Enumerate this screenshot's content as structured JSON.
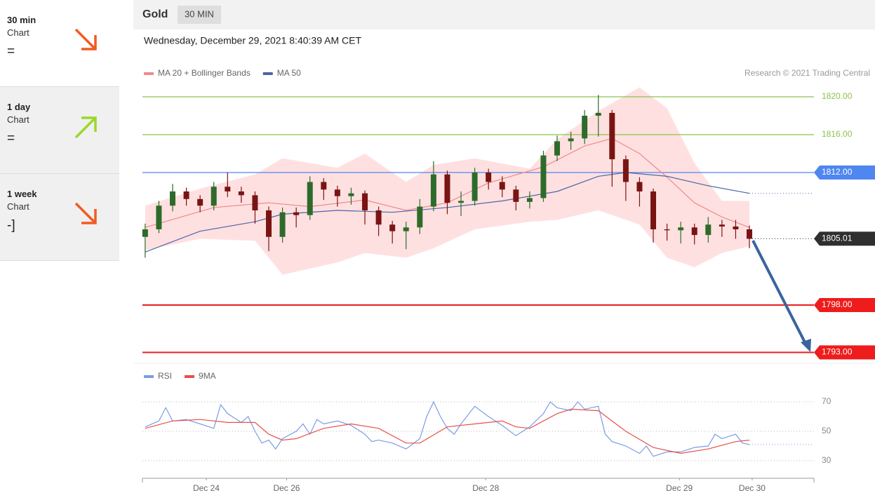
{
  "sidebar": [
    {
      "period": "30 min",
      "label": "Chart",
      "signal": "="
    },
    {
      "period": "1 day",
      "label": "Chart",
      "signal": "="
    },
    {
      "period": "1 week",
      "label": "Chart",
      "signal": "-]"
    }
  ],
  "header": {
    "instrument": "Gold",
    "timeframe": "30 MIN",
    "timestamp": "Wednesday, December 29, 2021 8:40:39 AM CET",
    "credit": "Research © 2021 Trading Central"
  },
  "chart_data": [
    {
      "type": "candlestick",
      "xlim": [
        -0.3,
        48.7
      ],
      "ylim": [
        1792,
        1821.5
      ],
      "up_color": "#2e6b2a",
      "down_color": "#7a1414",
      "candles": [
        [
          1805.2,
          1806.6,
          1803.0,
          1806.0
        ],
        [
          1806.0,
          1809.0,
          1805.6,
          1808.5
        ],
        [
          1808.5,
          1810.8,
          1807.9,
          1810.0
        ],
        [
          1810.0,
          1810.4,
          1808.5,
          1809.2
        ],
        [
          1809.2,
          1809.6,
          1807.8,
          1808.5
        ],
        [
          1808.5,
          1811.0,
          1808.0,
          1810.5
        ],
        [
          1810.5,
          1812.0,
          1809.4,
          1810.0
        ],
        [
          1810.0,
          1810.5,
          1808.8,
          1809.6
        ],
        [
          1809.6,
          1810.0,
          1806.6,
          1808.0
        ],
        [
          1808.0,
          1808.4,
          1803.7,
          1805.2
        ],
        [
          1805.2,
          1808.3,
          1804.6,
          1807.8
        ],
        [
          1807.8,
          1808.3,
          1806.2,
          1807.5
        ],
        [
          1807.5,
          1811.6,
          1807.0,
          1811.0
        ],
        [
          1811.0,
          1811.4,
          1809.1,
          1810.2
        ],
        [
          1810.2,
          1810.6,
          1808.4,
          1809.5
        ],
        [
          1809.5,
          1810.4,
          1808.6,
          1809.8
        ],
        [
          1809.8,
          1810.1,
          1806.5,
          1808.0
        ],
        [
          1808.0,
          1808.4,
          1805.3,
          1806.5
        ],
        [
          1806.5,
          1806.9,
          1804.5,
          1805.8
        ],
        [
          1805.8,
          1806.8,
          1803.9,
          1806.2
        ],
        [
          1806.2,
          1809.2,
          1805.5,
          1808.4
        ],
        [
          1808.4,
          1813.2,
          1807.9,
          1811.8
        ],
        [
          1811.8,
          1812.2,
          1807.6,
          1808.8
        ],
        [
          1808.8,
          1810.0,
          1807.4,
          1809.0
        ],
        [
          1809.0,
          1812.5,
          1808.5,
          1812.0
        ],
        [
          1812.0,
          1812.4,
          1810.2,
          1811.0
        ],
        [
          1811.0,
          1811.6,
          1809.4,
          1810.2
        ],
        [
          1810.2,
          1810.6,
          1808.0,
          1808.9
        ],
        [
          1808.9,
          1810.0,
          1808.2,
          1809.3
        ],
        [
          1809.3,
          1814.3,
          1808.9,
          1813.8
        ],
        [
          1813.8,
          1815.9,
          1813.2,
          1815.3
        ],
        [
          1815.3,
          1816.3,
          1814.4,
          1815.6
        ],
        [
          1815.6,
          1818.6,
          1815.0,
          1818.0
        ],
        [
          1818.0,
          1820.2,
          1815.8,
          1818.3
        ],
        [
          1818.3,
          1818.6,
          1810.5,
          1813.4
        ],
        [
          1813.4,
          1813.8,
          1809.0,
          1811.0
        ],
        [
          1811.0,
          1811.5,
          1808.4,
          1810.0
        ],
        [
          1810.0,
          1810.3,
          1804.6,
          1806.0
        ],
        [
          1806.0,
          1806.6,
          1804.8,
          1805.9
        ],
        [
          1805.9,
          1806.8,
          1804.5,
          1806.2
        ],
        [
          1806.2,
          1806.6,
          1804.4,
          1805.4
        ],
        [
          1805.4,
          1807.3,
          1804.6,
          1806.5
        ],
        [
          1806.5,
          1807.0,
          1805.2,
          1806.3
        ],
        [
          1806.3,
          1807.0,
          1805.0,
          1806.0
        ],
        [
          1806.0,
          1806.4,
          1804.0,
          1805.0
        ]
      ],
      "bands": {
        "color": "#ffdada",
        "x": [
          0,
          4,
          8,
          10,
          14,
          16,
          19,
          21,
          24,
          28,
          30,
          33,
          36,
          38,
          40,
          42,
          44
        ],
        "upper": [
          1808.5,
          1810.3,
          1811.8,
          1813.5,
          1812.5,
          1814.0,
          1811.0,
          1812.8,
          1813.5,
          1812.4,
          1815.5,
          1818.5,
          1821.0,
          1818.8,
          1813.0,
          1809.0,
          1809.0
        ],
        "lower": [
          1803.8,
          1805.0,
          1804.8,
          1801.2,
          1802.5,
          1803.5,
          1803.0,
          1804.0,
          1806.0,
          1806.8,
          1807.0,
          1808.0,
          1806.5,
          1803.0,
          1802.0,
          1803.5,
          1804.2
        ]
      },
      "series": [
        {
          "name": "MA 20 + Bollinger Bands",
          "color": "#f08a8a",
          "x": [
            0,
            5,
            9,
            12,
            16,
            19,
            22,
            25,
            29,
            32,
            34,
            36,
            38,
            40,
            42,
            44
          ],
          "values": [
            1806.2,
            1808.3,
            1808.8,
            1808.4,
            1809.1,
            1808.0,
            1808.8,
            1810.9,
            1812.6,
            1814.8,
            1815.6,
            1814.0,
            1811.5,
            1808.8,
            1807.3,
            1806.2
          ]
        },
        {
          "name": "MA 50",
          "color": "#4a66a8",
          "x": [
            0,
            4,
            8,
            10,
            14,
            18,
            22,
            26,
            30,
            33,
            35,
            38,
            41,
            44
          ],
          "values": [
            1803.6,
            1805.8,
            1806.8,
            1807.6,
            1808.0,
            1807.8,
            1808.3,
            1809.0,
            1810.0,
            1811.6,
            1812.0,
            1811.6,
            1810.6,
            1809.8
          ]
        }
      ],
      "levels": [
        {
          "value": 1820,
          "label": "1820.00",
          "color": "#8bc34a",
          "boxed": false
        },
        {
          "value": 1816,
          "label": "1816.00",
          "color": "#8bc34a",
          "boxed": false
        },
        {
          "value": 1812,
          "label": "1812.00",
          "color": "#4f86f0",
          "boxed": true
        },
        {
          "value": 1798,
          "label": "1798.00",
          "color": "#ee1c1c",
          "boxed": true
        },
        {
          "value": 1793,
          "label": "1793.00",
          "color": "#ee1c1c",
          "boxed": true
        }
      ],
      "last_price": {
        "value": 1805.01,
        "label": "1805.01",
        "color": "#2f2f2f"
      }
    },
    {
      "type": "line",
      "xlim": [
        -0.3,
        48.7
      ],
      "ylim": [
        20,
        80
      ],
      "yticks": [
        30,
        50,
        70
      ],
      "grid": true,
      "xticks": [
        {
          "value": 4.45,
          "label": "Dec 24"
        },
        {
          "value": 10.3,
          "label": "Dec 26"
        },
        {
          "value": 24.8,
          "label": "Dec 28"
        },
        {
          "value": 38.9,
          "label": "Dec 29"
        },
        {
          "value": 44.2,
          "label": "Dec 30"
        }
      ],
      "series": [
        {
          "name": "RSI",
          "color": "#7b9be8",
          "x": [
            0,
            1,
            1.5,
            2,
            3,
            4,
            5,
            5.5,
            6,
            7,
            7.5,
            8,
            8.5,
            9,
            9.5,
            10,
            11,
            11.5,
            12,
            12.5,
            13,
            14,
            15,
            16,
            16.5,
            17,
            18,
            19,
            20,
            20.5,
            21,
            21.5,
            22,
            22.5,
            23,
            24,
            25,
            26,
            27,
            28,
            29,
            29.5,
            30,
            31,
            31.5,
            32,
            33,
            33.5,
            34,
            35,
            36,
            36.5,
            37,
            38,
            39,
            40,
            41,
            41.5,
            42,
            43,
            43.5,
            44
          ],
          "values": [
            53,
            57,
            66,
            57,
            58,
            55,
            52,
            68,
            62,
            56,
            60,
            50,
            42,
            44,
            38,
            45,
            50,
            55,
            48,
            58,
            55,
            57,
            54,
            48,
            43,
            44,
            42,
            38,
            45,
            60,
            70,
            60,
            52,
            48,
            55,
            67,
            60,
            54,
            47,
            53,
            62,
            70,
            66,
            64,
            70,
            65,
            67,
            48,
            43,
            40,
            35,
            40,
            33,
            36,
            36,
            39,
            40,
            48,
            45,
            48,
            42,
            41
          ]
        },
        {
          "name": "9MA",
          "color": "#e8504a",
          "x": [
            0,
            2,
            4,
            6,
            8,
            9,
            10,
            11,
            13,
            15,
            17,
            19,
            20,
            22,
            24,
            26,
            27,
            28,
            30,
            31,
            33,
            35,
            37,
            39,
            41,
            43,
            44
          ],
          "values": [
            52,
            57,
            58,
            56,
            56,
            48,
            44,
            45,
            52,
            55,
            52,
            42,
            42,
            53,
            55,
            57,
            53,
            52,
            62,
            65,
            64,
            50,
            39,
            35,
            38,
            43,
            44
          ]
        }
      ]
    }
  ]
}
